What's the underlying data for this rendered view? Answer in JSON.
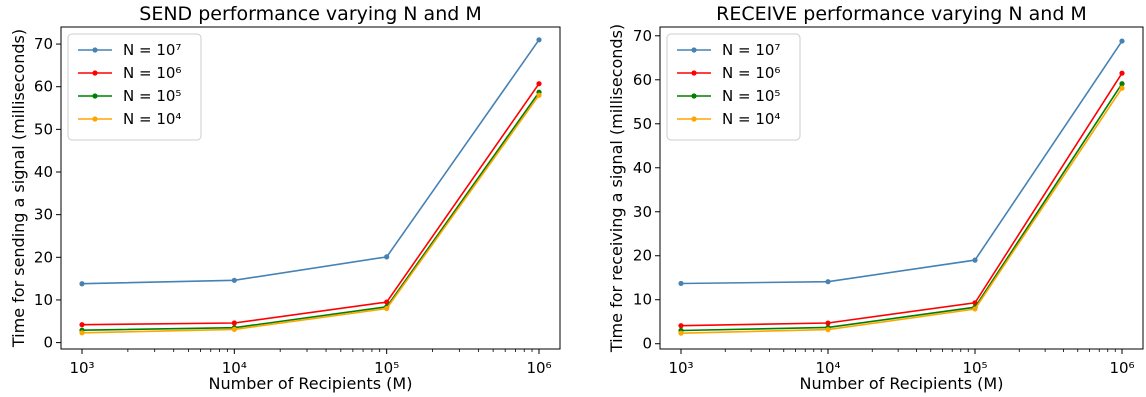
{
  "chart_data": [
    {
      "type": "line",
      "title": "SEND performance varying N and M",
      "xlabel": "Number of Recipients (M)",
      "ylabel": "Time for sending a signal (milliseconds)",
      "xscale": "log",
      "x": [
        1000,
        10000,
        100000,
        1000000
      ],
      "x_tick_labels": [
        "10³",
        "10⁴",
        "10⁵",
        "10⁶"
      ],
      "ylim": [
        -1.5,
        74
      ],
      "yticks": [
        0,
        10,
        20,
        30,
        40,
        50,
        60,
        70
      ],
      "grid": false,
      "legend": "top-left",
      "series": [
        {
          "name": "N = 10⁷",
          "color": "#4682b4",
          "values": [
            13.8,
            14.6,
            20.1,
            71.0
          ]
        },
        {
          "name": "N = 10⁶",
          "color": "#ff0000",
          "values": [
            4.2,
            4.6,
            9.5,
            60.7
          ]
        },
        {
          "name": "N = 10⁵",
          "color": "#008000",
          "values": [
            2.9,
            3.5,
            8.4,
            58.7
          ]
        },
        {
          "name": "N = 10⁴",
          "color": "#ffa500",
          "values": [
            2.3,
            3.1,
            8.0,
            58.0
          ]
        }
      ]
    },
    {
      "type": "line",
      "title": "RECEIVE performance varying N and M",
      "xlabel": "Number of Recipients (M)",
      "ylabel": "Time for receiving a signal (milliseconds)",
      "xscale": "log",
      "x": [
        1000,
        10000,
        100000,
        1000000
      ],
      "x_tick_labels": [
        "10³",
        "10⁴",
        "10⁵",
        "10⁶"
      ],
      "ylim": [
        -1.2,
        72
      ],
      "yticks": [
        0,
        10,
        20,
        30,
        40,
        50,
        60,
        70
      ],
      "grid": false,
      "legend": "top-left",
      "series": [
        {
          "name": "N = 10⁷",
          "color": "#4682b4",
          "values": [
            13.7,
            14.1,
            19.0,
            68.8
          ]
        },
        {
          "name": "N = 10⁶",
          "color": "#ff0000",
          "values": [
            4.1,
            4.7,
            9.3,
            61.5
          ]
        },
        {
          "name": "N = 10⁵",
          "color": "#008000",
          "values": [
            3.0,
            3.7,
            8.3,
            59.1
          ]
        },
        {
          "name": "N = 10⁴",
          "color": "#ffa500",
          "values": [
            2.4,
            3.2,
            7.9,
            58.1
          ]
        }
      ]
    }
  ]
}
